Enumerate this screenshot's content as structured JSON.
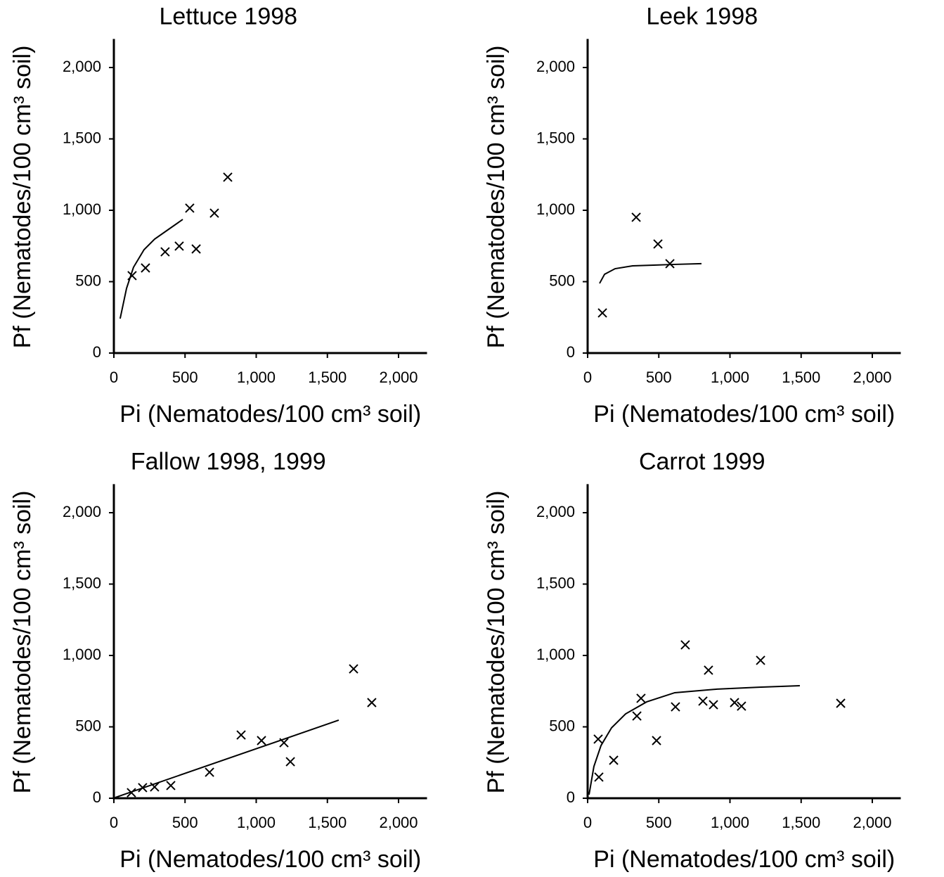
{
  "chart_data": [
    {
      "type": "scatter",
      "title": "Lettuce 1998",
      "xlabel": "Pi (Nematodes/100 cm³ soil)",
      "ylabel": "Pf (Nematodes/100 cm³ soil)",
      "xlim": [
        0,
        2200
      ],
      "ylim": [
        0,
        2200
      ],
      "xticks": [
        0,
        500,
        {
          "value": 1000,
          "label": "1,000"
        },
        {
          "value": 1500,
          "label": "1,500"
        },
        {
          "value": 2000,
          "label": "2,000"
        }
      ],
      "yticks": [
        0,
        500,
        {
          "value": 1000,
          "label": "1,000"
        },
        {
          "value": 1500,
          "label": "1,500"
        },
        {
          "value": 2000,
          "label": "2,000"
        }
      ],
      "series": [
        {
          "type": "scatter",
          "color": "#000000",
          "x": [
            128,
            222,
            360,
            459,
            533,
            578,
            706,
            800
          ],
          "values": [
            542,
            596,
            709,
            749,
            1015,
            729,
            980,
            1232
          ]
        },
        {
          "type": "line",
          "color": "#000000",
          "x": [
            44,
            89,
            138,
            212,
            286,
            385,
            484
          ],
          "values": [
            241,
            453,
            601,
            724,
            798,
            867,
            936
          ]
        }
      ]
    },
    {
      "type": "scatter",
      "title": "Leek 1998",
      "xlabel": "Pi (Nematodes/100 cm³ soil)",
      "ylabel": "Pf (Nematodes/100 cm³ soil)",
      "xlim": [
        0,
        2200
      ],
      "ylim": [
        0,
        2200
      ],
      "xticks": [
        0,
        500,
        {
          "value": 1000,
          "label": "1,000"
        },
        {
          "value": 1500,
          "label": "1,500"
        },
        {
          "value": 2000,
          "label": "2,000"
        }
      ],
      "yticks": [
        0,
        500,
        {
          "value": 1000,
          "label": "1,000"
        },
        {
          "value": 1500,
          "label": "1,500"
        },
        {
          "value": 2000,
          "label": "2,000"
        }
      ],
      "series": [
        {
          "type": "scatter",
          "color": "#000000",
          "x": [
            104,
            341,
            494,
            578
          ],
          "values": [
            281,
            951,
            764,
            626
          ]
        },
        {
          "type": "line",
          "color": "#000000",
          "x": [
            84,
            119,
            193,
            316,
            464,
            612,
            800
          ],
          "values": [
            488,
            552,
            591,
            611,
            616,
            621,
            626
          ]
        }
      ]
    },
    {
      "type": "scatter",
      "title": "Fallow 1998, 1999",
      "xlabel": "Pi (Nematodes/100 cm³ soil)",
      "ylabel": "Pf (Nematodes/100 cm³ soil)",
      "xlim": [
        0,
        2200
      ],
      "ylim": [
        0,
        2200
      ],
      "xticks": [
        0,
        500,
        {
          "value": 1000,
          "label": "1,000"
        },
        {
          "value": 1500,
          "label": "1,500"
        },
        {
          "value": 2000,
          "label": "2,000"
        }
      ],
      "yticks": [
        0,
        500,
        {
          "value": 1000,
          "label": "1,000"
        },
        {
          "value": 1500,
          "label": "1,500"
        },
        {
          "value": 2000,
          "label": "2,000"
        }
      ],
      "series": [
        {
          "type": "scatter",
          "color": "#000000",
          "x": [
            123,
            202,
            286,
            400,
            672,
            894,
            1037,
            1195,
            1240,
            1684,
            1812
          ],
          "values": [
            39,
            74,
            79,
            89,
            182,
            443,
            404,
            389,
            256,
            906,
            670
          ]
        },
        {
          "type": "line",
          "color": "#000000",
          "x": [
            10,
            1580
          ],
          "values": [
            5,
            547
          ]
        }
      ]
    },
    {
      "type": "scatter",
      "title": "Carrot 1999",
      "xlabel": "Pi (Nematodes/100 cm³ soil)",
      "ylabel": "Pf (Nematodes/100 cm³ soil)",
      "xlim": [
        0,
        2200
      ],
      "ylim": [
        0,
        2200
      ],
      "xticks": [
        0,
        500,
        {
          "value": 1000,
          "label": "1,000"
        },
        {
          "value": 1500,
          "label": "1,500"
        },
        {
          "value": 2000,
          "label": "2,000"
        }
      ],
      "yticks": [
        0,
        500,
        {
          "value": 1000,
          "label": "1,000"
        },
        {
          "value": 1500,
          "label": "1,500"
        },
        {
          "value": 2000,
          "label": "2,000"
        }
      ],
      "series": [
        {
          "type": "scatter",
          "color": "#000000",
          "x": [
            74,
            79,
            183,
            346,
            375,
            484,
            617,
            686,
            810,
            849,
            884,
            1032,
            1081,
            1215,
            1778
          ],
          "values": [
            414,
            148,
            266,
            576,
            700,
            404,
            640,
            1074,
            680,
            897,
            655,
            670,
            645,
            966,
            665
          ]
        },
        {
          "type": "line",
          "color": "#000000",
          "x": [
            10,
            44,
            94,
            168,
            267,
            415,
            612,
            909,
            1205,
            1491
          ],
          "values": [
            25,
            222,
            369,
            493,
            591,
            675,
            739,
            764,
            778,
            788
          ]
        }
      ]
    }
  ]
}
